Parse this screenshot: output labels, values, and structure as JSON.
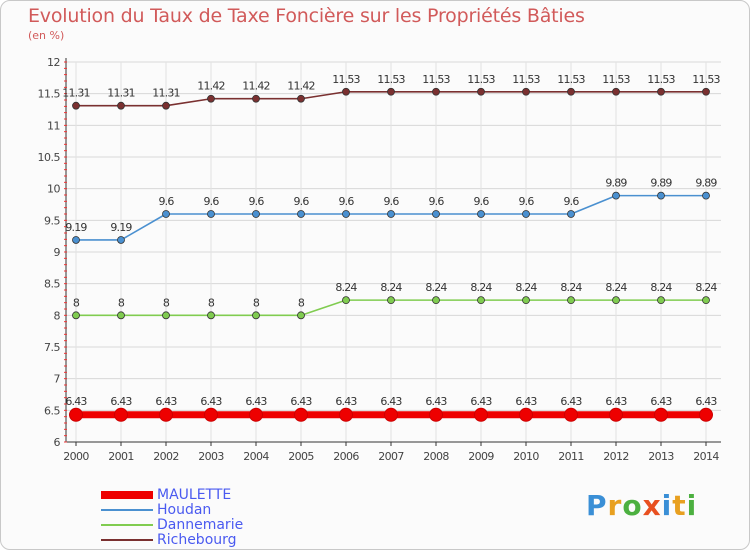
{
  "title": "Evolution du Taux de Taxe Foncière sur les Propriétés Bâties",
  "subtitle": "(en %)",
  "brand": {
    "letters": [
      "P",
      "r",
      "o",
      "x",
      "i",
      "t",
      "i"
    ],
    "colors": [
      "#3a8fd6",
      "#e8a020",
      "#4cb040",
      "#e85020",
      "#3a8fd6",
      "#e8a020",
      "#4cb040"
    ]
  },
  "chart_data": {
    "type": "line",
    "x": [
      2000,
      2001,
      2002,
      2003,
      2004,
      2005,
      2006,
      2007,
      2008,
      2009,
      2010,
      2011,
      2012,
      2013,
      2014
    ],
    "ylim": [
      6,
      12
    ],
    "yticks": [
      6,
      6.5,
      7,
      7.5,
      8,
      8.5,
      9,
      9.5,
      10,
      10.5,
      11,
      11.5,
      12
    ],
    "ytick_labels": [
      "6",
      "6.5",
      "7",
      "7.5",
      "8",
      "8.5",
      "9",
      "9.5",
      "10",
      "10.5",
      "11",
      "11.5",
      "12"
    ],
    "grid": true,
    "series": [
      {
        "name": "MAULETTE",
        "color": "#ee0000",
        "values": [
          6.43,
          6.43,
          6.43,
          6.43,
          6.43,
          6.43,
          6.43,
          6.43,
          6.43,
          6.43,
          6.43,
          6.43,
          6.43,
          6.43,
          6.43
        ],
        "labels": [
          "6.43",
          "6.43",
          "6.43",
          "6.43",
          "6.43",
          "6.43",
          "6.43",
          "6.43",
          "6.43",
          "6.43",
          "6.43",
          "6.43",
          "6.43",
          "6.43",
          "6.43"
        ]
      },
      {
        "name": "Houdan",
        "color": "#4a90d0",
        "values": [
          9.19,
          9.19,
          9.6,
          9.6,
          9.6,
          9.6,
          9.6,
          9.6,
          9.6,
          9.6,
          9.6,
          9.6,
          9.89,
          9.89,
          9.89
        ],
        "labels": [
          "9.19",
          "9.19",
          "9.6",
          "9.6",
          "9.6",
          "9.6",
          "9.6",
          "9.6",
          "9.6",
          "9.6",
          "9.6",
          "9.6",
          "9.89",
          "9.89",
          "9.89"
        ]
      },
      {
        "name": "Dannemarie",
        "color": "#80cc50",
        "values": [
          8,
          8,
          8,
          8,
          8,
          8,
          8.24,
          8.24,
          8.24,
          8.24,
          8.24,
          8.24,
          8.24,
          8.24,
          8.24
        ],
        "labels": [
          "8",
          "8",
          "8",
          "8",
          "8",
          "8",
          "8.24",
          "8.24",
          "8.24",
          "8.24",
          "8.24",
          "8.24",
          "8.24",
          "8.24",
          "8.24"
        ]
      },
      {
        "name": "Richebourg",
        "color": "#7a3030",
        "values": [
          11.31,
          11.31,
          11.31,
          11.42,
          11.42,
          11.42,
          11.53,
          11.53,
          11.53,
          11.53,
          11.53,
          11.53,
          11.53,
          11.53,
          11.53
        ],
        "labels": [
          "11.31",
          "11.31",
          "11.31",
          "11.42",
          "11.42",
          "11.42",
          "11.53",
          "11.53",
          "11.53",
          "11.53",
          "11.53",
          "11.53",
          "11.53",
          "11.53",
          "11.53"
        ]
      }
    ],
    "legend": {
      "placement": "bottom-left"
    }
  }
}
